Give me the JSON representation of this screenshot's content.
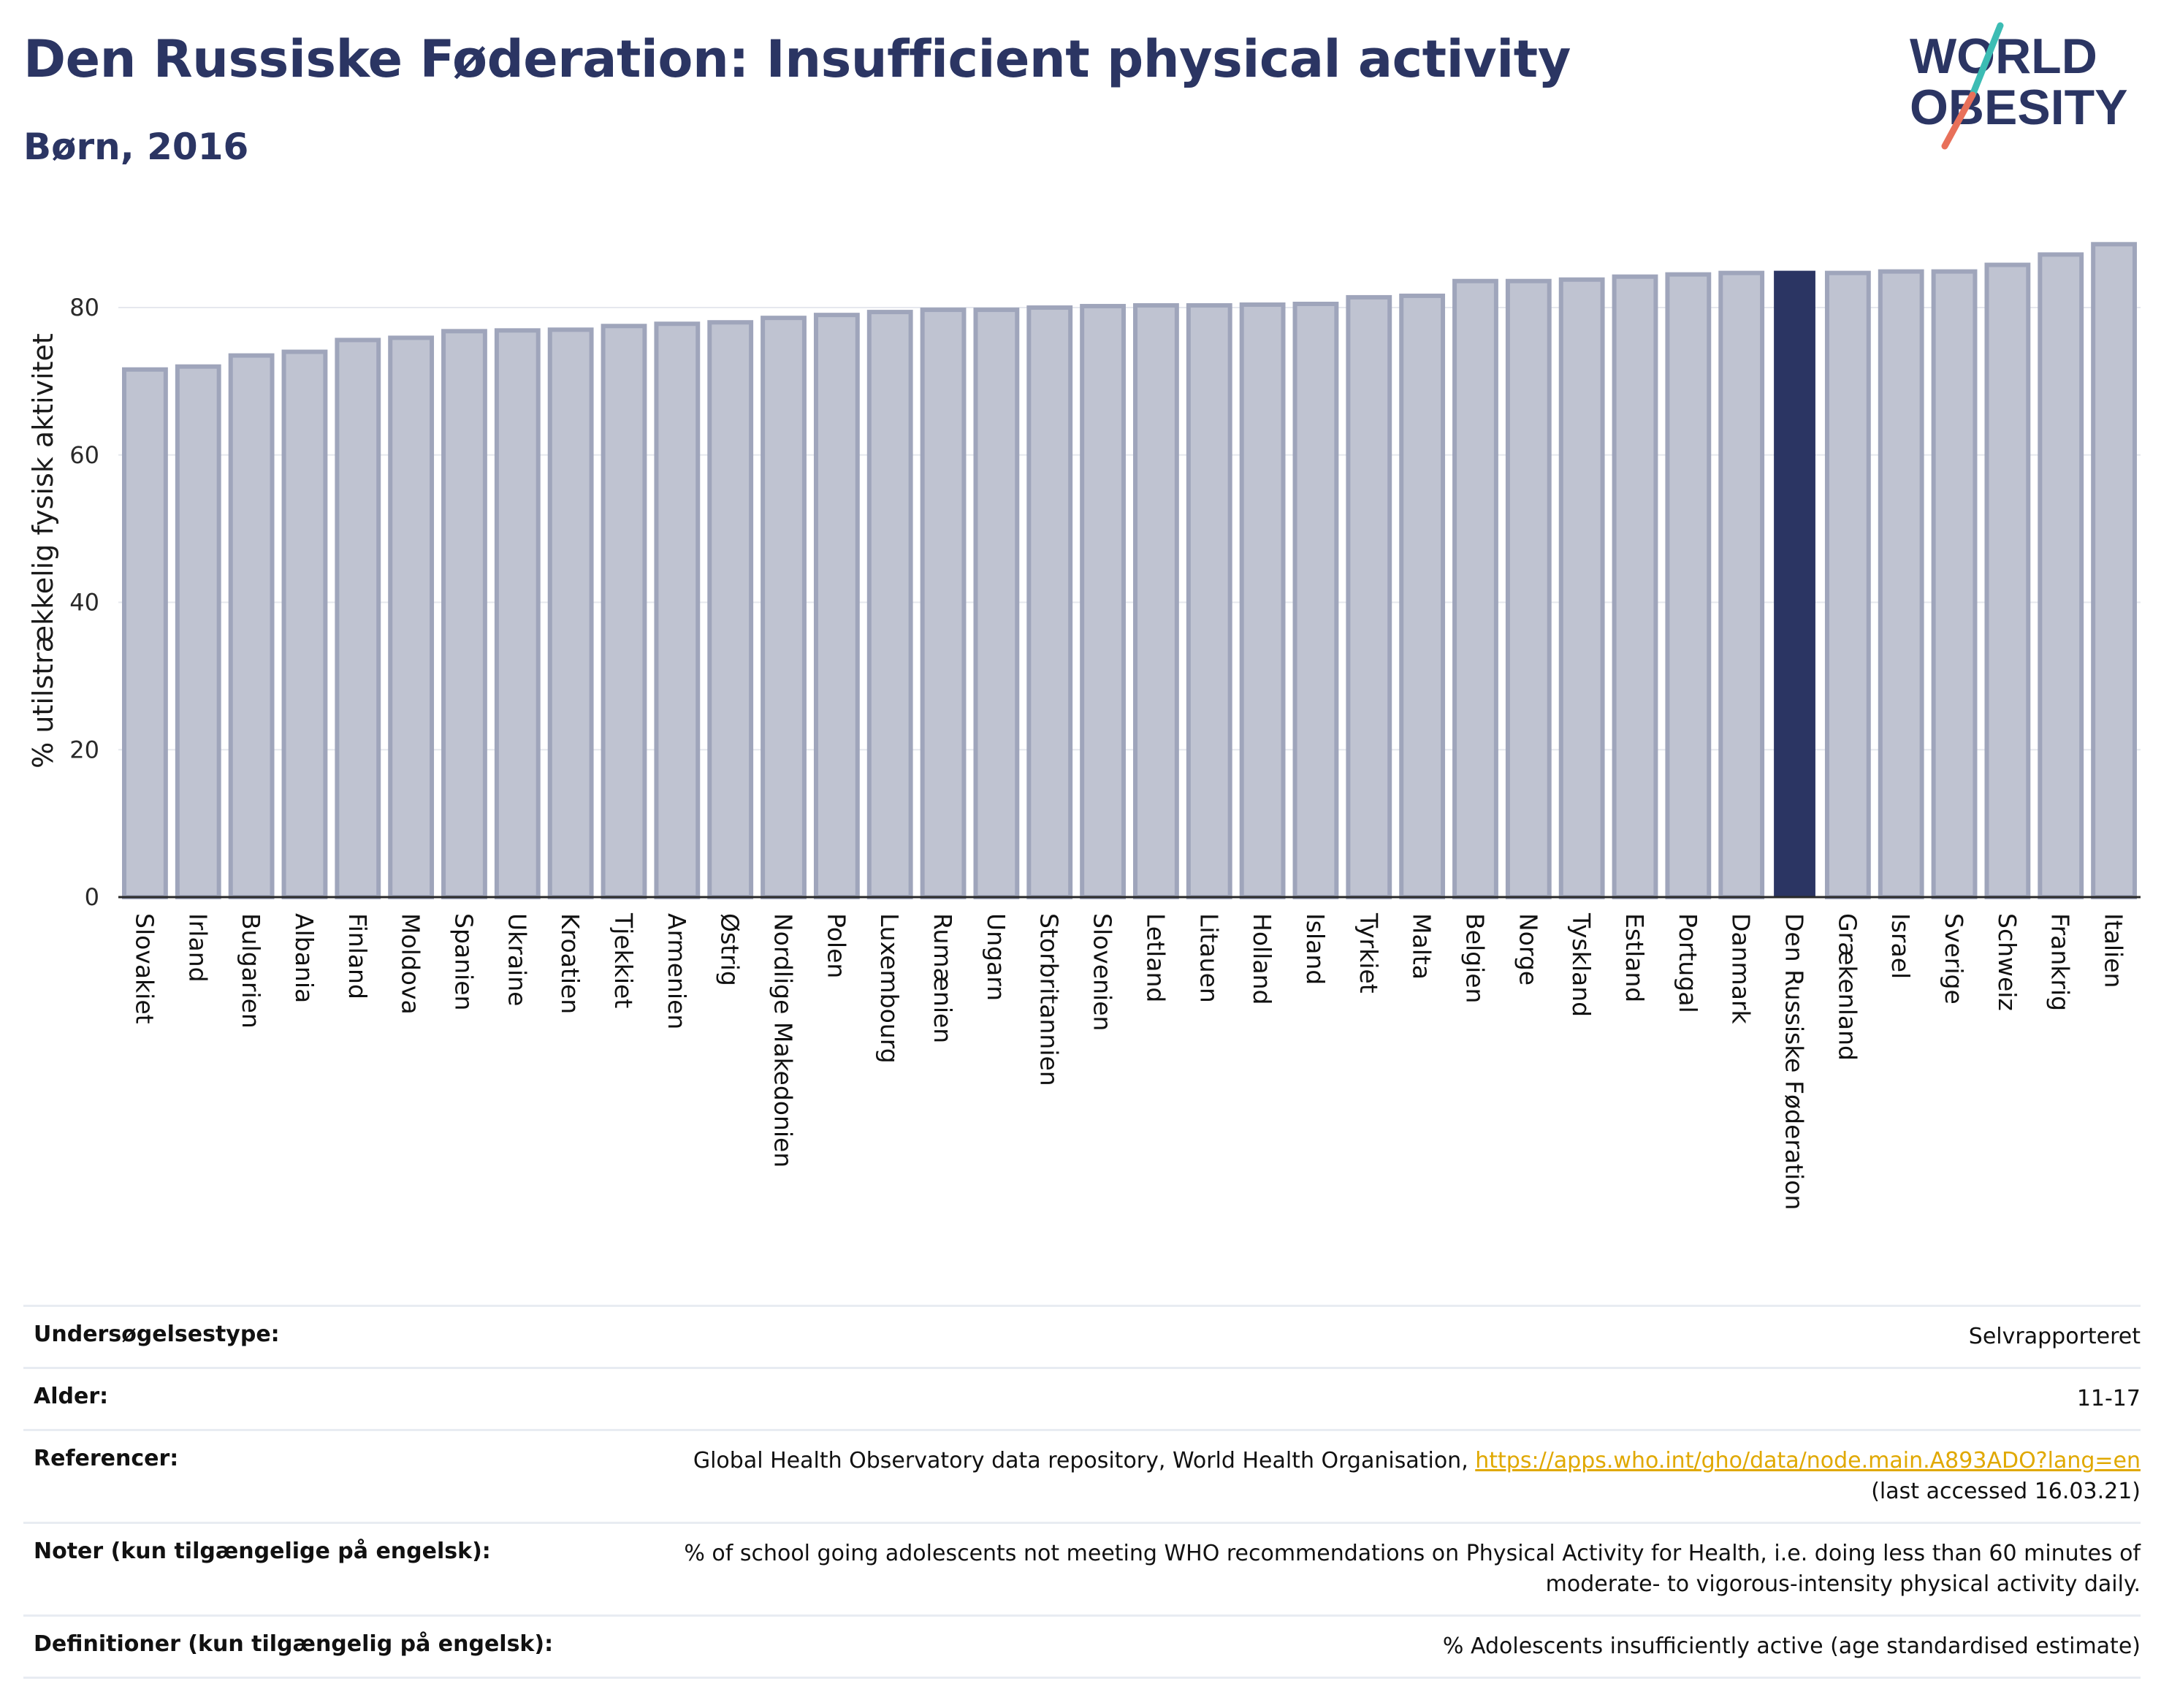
{
  "header": {
    "title": "Den Russiske Føderation: Insufficient physical activity",
    "subtitle": "Børn, 2016"
  },
  "logo": {
    "line1": "WORLD",
    "line2": "OBESITY"
  },
  "colors": {
    "highlight": "#2b3563",
    "bar": "#bfc3d1",
    "bar_stroke": "#9fa5bb",
    "accent_teal": "#3cbcb4",
    "accent_coral": "#e8705a",
    "link": "#e0a800"
  },
  "chart_data": {
    "type": "bar",
    "ylabel": "% utilstrækkelig fysisk aktivitet",
    "ylim": [
      0,
      92
    ],
    "yticks": [
      0,
      20,
      40,
      60,
      80
    ],
    "grid": true,
    "highlight": "Den Russiske Føderation",
    "categories": [
      "Slovakiet",
      "Irland",
      "Bulgarien",
      "Albania",
      "Finland",
      "Moldova",
      "Spanien",
      "Ukraine",
      "Kroatien",
      "Tjekkiet",
      "Armenien",
      "Østrig",
      "Nordlige Makedonien",
      "Polen",
      "Luxembourg",
      "Rumænien",
      "Ungarn",
      "Storbritannien",
      "Slovenien",
      "Letland",
      "Litauen",
      "Holland",
      "Island",
      "Tyrkiet",
      "Malta",
      "Belgien",
      "Norge",
      "Tyskland",
      "Estland",
      "Portugal",
      "Danmark",
      "Den Russiske Føderation",
      "Grækenland",
      "Israel",
      "Sverige",
      "Schweiz",
      "Frankrig",
      "Italien"
    ],
    "values": [
      71.6,
      72.0,
      73.5,
      74.0,
      75.6,
      75.9,
      76.8,
      76.9,
      77.0,
      77.5,
      77.8,
      78.0,
      78.6,
      79.0,
      79.4,
      79.7,
      79.7,
      80.0,
      80.2,
      80.3,
      80.3,
      80.4,
      80.5,
      81.4,
      81.6,
      83.6,
      83.6,
      83.8,
      84.2,
      84.5,
      84.7,
      85.0,
      84.7,
      84.9,
      84.9,
      85.8,
      87.2,
      88.6
    ]
  },
  "meta": [
    {
      "label": "Undersøgelsestype:",
      "value": "Selvrapporteret"
    },
    {
      "label": "Alder:",
      "value": "11-17"
    },
    {
      "label": "Referencer:",
      "value": "Global Health Observatory data repository, World Health Organisation, ",
      "link": "https://apps.who.int/gho/data/node.main.A893ADO?lang=en",
      "value2": "(last accessed 16.03.21)"
    },
    {
      "label": "Noter (kun tilgængelige på engelsk):",
      "value": "% of school going adolescents not meeting WHO recommendations on Physical Activity for Health, i.e. doing less than 60 minutes of",
      "value2": "moderate- to vigorous-intensity physical activity daily."
    },
    {
      "label": "Definitioner (kun tilgængelig på engelsk):",
      "value": "% Adolescents insufficiently active (age standardised estimate)"
    }
  ]
}
